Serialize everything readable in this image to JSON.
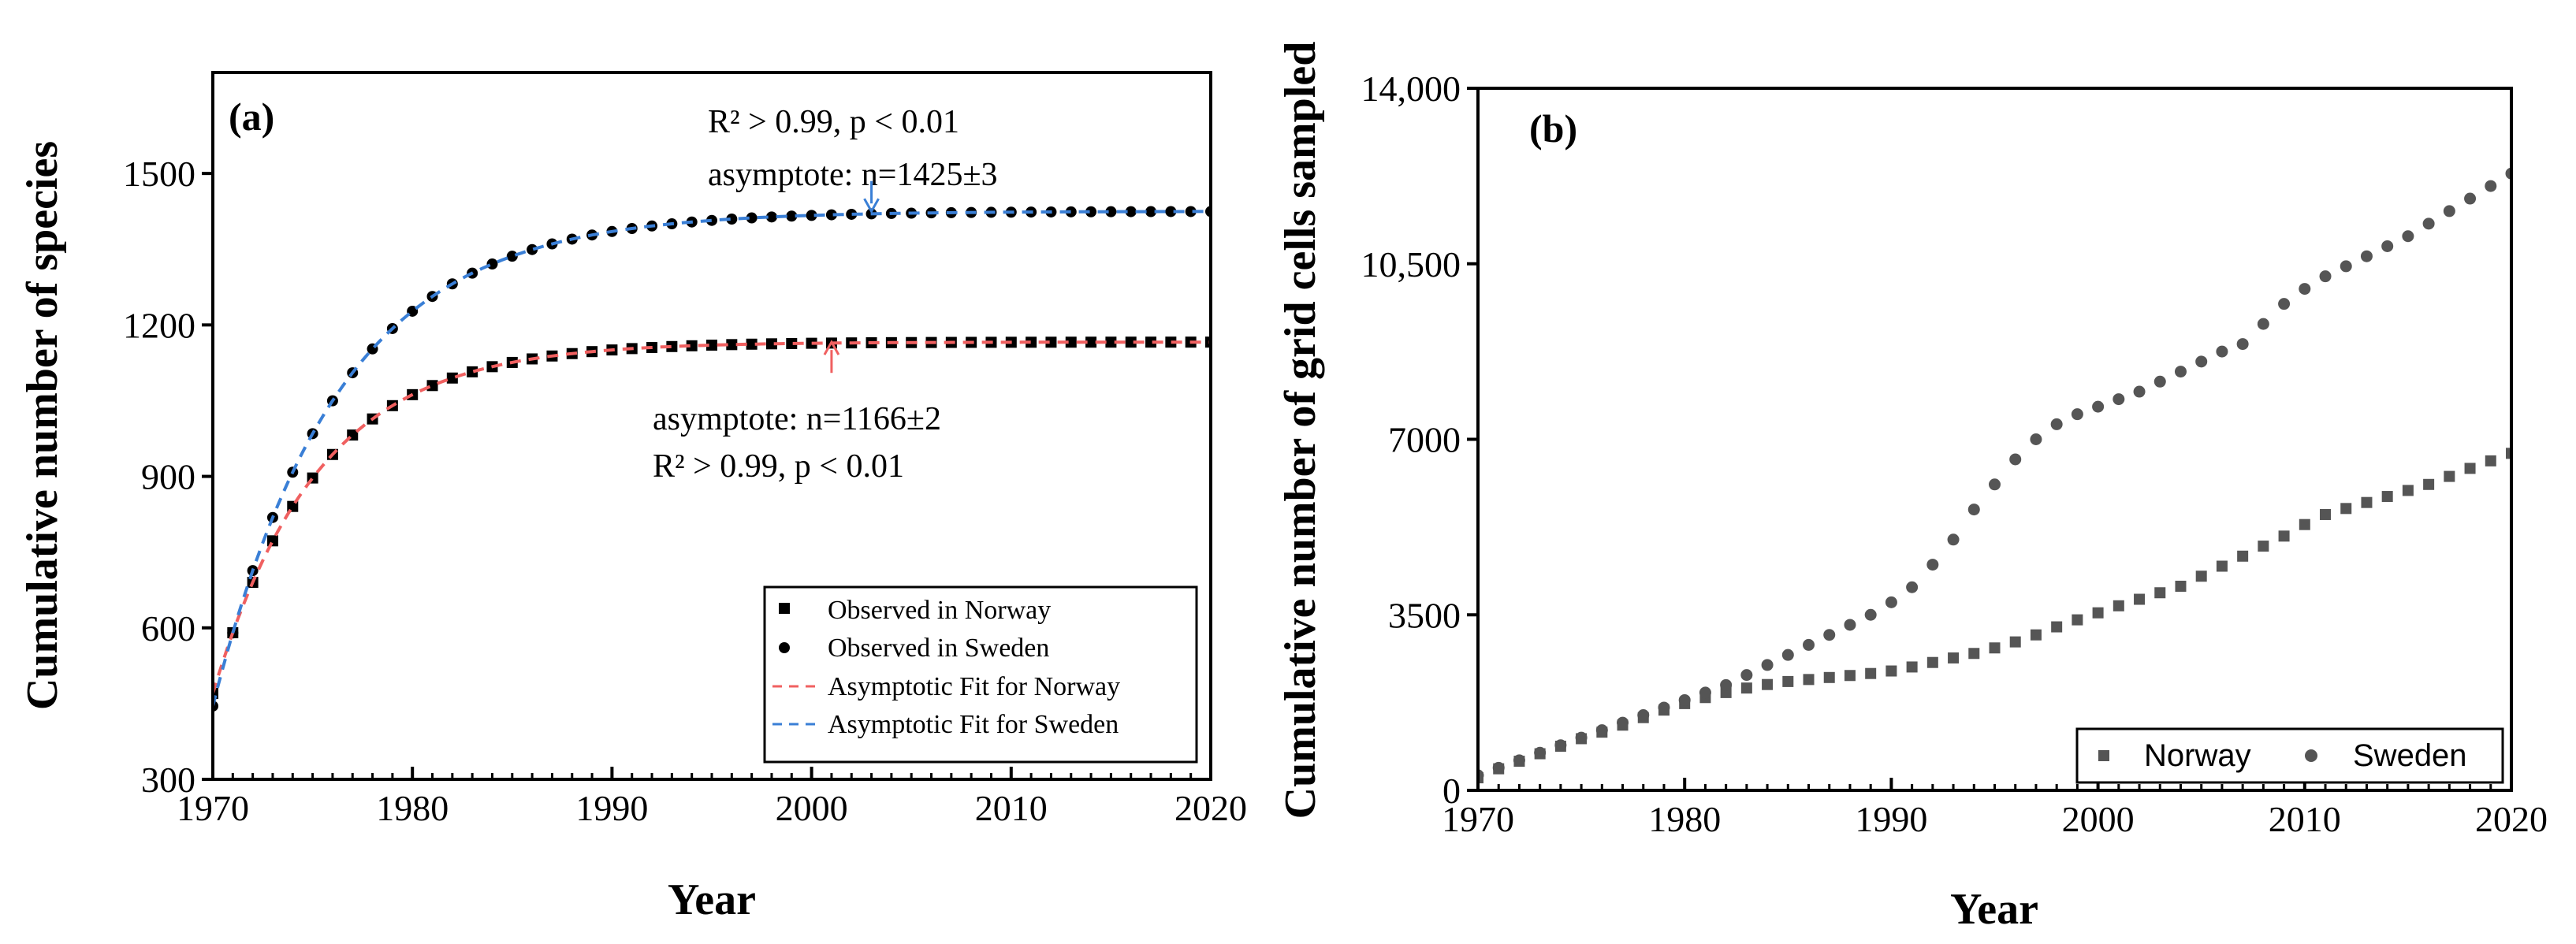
{
  "chart_data": [
    {
      "type": "scatter",
      "panel_label": "(a)",
      "xlabel": "Year",
      "ylabel": "Cumulative number of species",
      "xlim": [
        1970,
        2020
      ],
      "ylim": [
        300,
        1700
      ],
      "xticks": [
        1970,
        1980,
        1990,
        2000,
        2010,
        2020
      ],
      "yticks": [
        300,
        600,
        900,
        1200,
        1500
      ],
      "xtick_labels": [
        "1970",
        "1980",
        "1990",
        "2000",
        "2010",
        "2020"
      ],
      "ytick_labels": [
        "300",
        "600",
        "900",
        "1200",
        "1500"
      ],
      "legend_position": "bottom-right",
      "series": [
        {
          "name": "Observed in Norway",
          "kind": "points",
          "marker": "square",
          "color": "#000000",
          "model": {
            "asymptote": 1166,
            "start": 470,
            "rate": 0.19
          },
          "x_range": [
            1970,
            2020
          ]
        },
        {
          "name": "Observed in Sweden",
          "kind": "points",
          "marker": "circle",
          "color": "#000000",
          "model": {
            "asymptote": 1425,
            "start": 445,
            "rate": 0.16
          },
          "x_range": [
            1970,
            2020
          ]
        },
        {
          "name": "Asymptotic Fit for Norway",
          "kind": "dashed-line",
          "color": "#f06060",
          "model": {
            "asymptote": 1166,
            "start": 470,
            "rate": 0.19
          },
          "x_range": [
            1970,
            2020
          ]
        },
        {
          "name": "Asymptotic Fit for Sweden",
          "kind": "dashed-line",
          "color": "#3a7fd6",
          "model": {
            "asymptote": 1425,
            "start": 445,
            "rate": 0.16
          },
          "x_range": [
            1970,
            2020
          ]
        }
      ],
      "annotations": {
        "sweden_r2": "R² > 0.99, p < 0.01",
        "sweden_asymptote": "asymptote: n=1425±3",
        "sweden_arrow_x": 2003,
        "sweden_arrow_y": [
          1485,
          1425
        ],
        "sweden_arrow_color": "#3a7fd6",
        "norway_asymptote": "asymptote: n=1166±2",
        "norway_r2": "R² > 0.99, p < 0.01",
        "norway_arrow_x": 2001,
        "norway_arrow_y": [
          1105,
          1166
        ],
        "norway_arrow_color": "#f06060"
      }
    },
    {
      "type": "scatter",
      "panel_label": "(b)",
      "xlabel": "Year",
      "ylabel": "Cumulative number of grid cells sampled",
      "xlim": [
        1970,
        2020
      ],
      "ylim": [
        0,
        14000
      ],
      "xticks": [
        1970,
        1980,
        1990,
        2000,
        2010,
        2020
      ],
      "yticks": [
        0,
        3500,
        7000,
        10500,
        14000
      ],
      "xtick_labels": [
        "1970",
        "1980",
        "1990",
        "2000",
        "2010",
        "2020"
      ],
      "ytick_labels": [
        "0",
        "3500",
        "7000",
        "10,500",
        "14,000"
      ],
      "legend_position": "bottom-right",
      "series": [
        {
          "name": "Norway",
          "marker": "square",
          "color": "#555555",
          "x": [
            1970,
            1971,
            1972,
            1973,
            1974,
            1975,
            1976,
            1977,
            1978,
            1979,
            1980,
            1981,
            1982,
            1983,
            1984,
            1985,
            1986,
            1987,
            1988,
            1989,
            1990,
            1991,
            1992,
            1993,
            1994,
            1995,
            1996,
            1997,
            1998,
            1999,
            2000,
            2001,
            2002,
            2003,
            2004,
            2005,
            2006,
            2007,
            2008,
            2009,
            2010,
            2011,
            2012,
            2013,
            2014,
            2015,
            2016,
            2017,
            2018,
            2019,
            2020
          ],
          "y": [
            250,
            430,
            580,
            730,
            880,
            1030,
            1160,
            1300,
            1450,
            1600,
            1730,
            1850,
            1950,
            2040,
            2110,
            2170,
            2210,
            2250,
            2290,
            2330,
            2380,
            2460,
            2550,
            2640,
            2730,
            2840,
            2960,
            3100,
            3260,
            3400,
            3540,
            3680,
            3810,
            3940,
            4070,
            4270,
            4470,
            4670,
            4870,
            5070,
            5300,
            5500,
            5620,
            5740,
            5860,
            5980,
            6100,
            6260,
            6420,
            6570,
            6720
          ]
        },
        {
          "name": "Sweden",
          "marker": "circle",
          "color": "#555555",
          "x": [
            1970,
            1971,
            1972,
            1973,
            1974,
            1975,
            1976,
            1977,
            1978,
            1979,
            1980,
            1981,
            1982,
            1983,
            1984,
            1985,
            1986,
            1987,
            1988,
            1989,
            1990,
            1991,
            1992,
            1993,
            1994,
            1995,
            1996,
            1997,
            1998,
            1999,
            2000,
            2001,
            2002,
            2003,
            2004,
            2005,
            2006,
            2007,
            2008,
            2009,
            2010,
            2011,
            2012,
            2013,
            2014,
            2015,
            2016,
            2017,
            2018,
            2019,
            2020
          ],
          "y": [
            300,
            450,
            600,
            750,
            900,
            1050,
            1200,
            1350,
            1500,
            1650,
            1800,
            1950,
            2100,
            2300,
            2500,
            2700,
            2900,
            3100,
            3300,
            3500,
            3750,
            4050,
            4500,
            5000,
            5600,
            6100,
            6600,
            7000,
            7300,
            7500,
            7650,
            7800,
            7950,
            8150,
            8350,
            8550,
            8750,
            8900,
            9300,
            9700,
            10000,
            10250,
            10450,
            10650,
            10850,
            11050,
            11300,
            11550,
            11800,
            12050,
            12300
          ]
        }
      ]
    }
  ]
}
